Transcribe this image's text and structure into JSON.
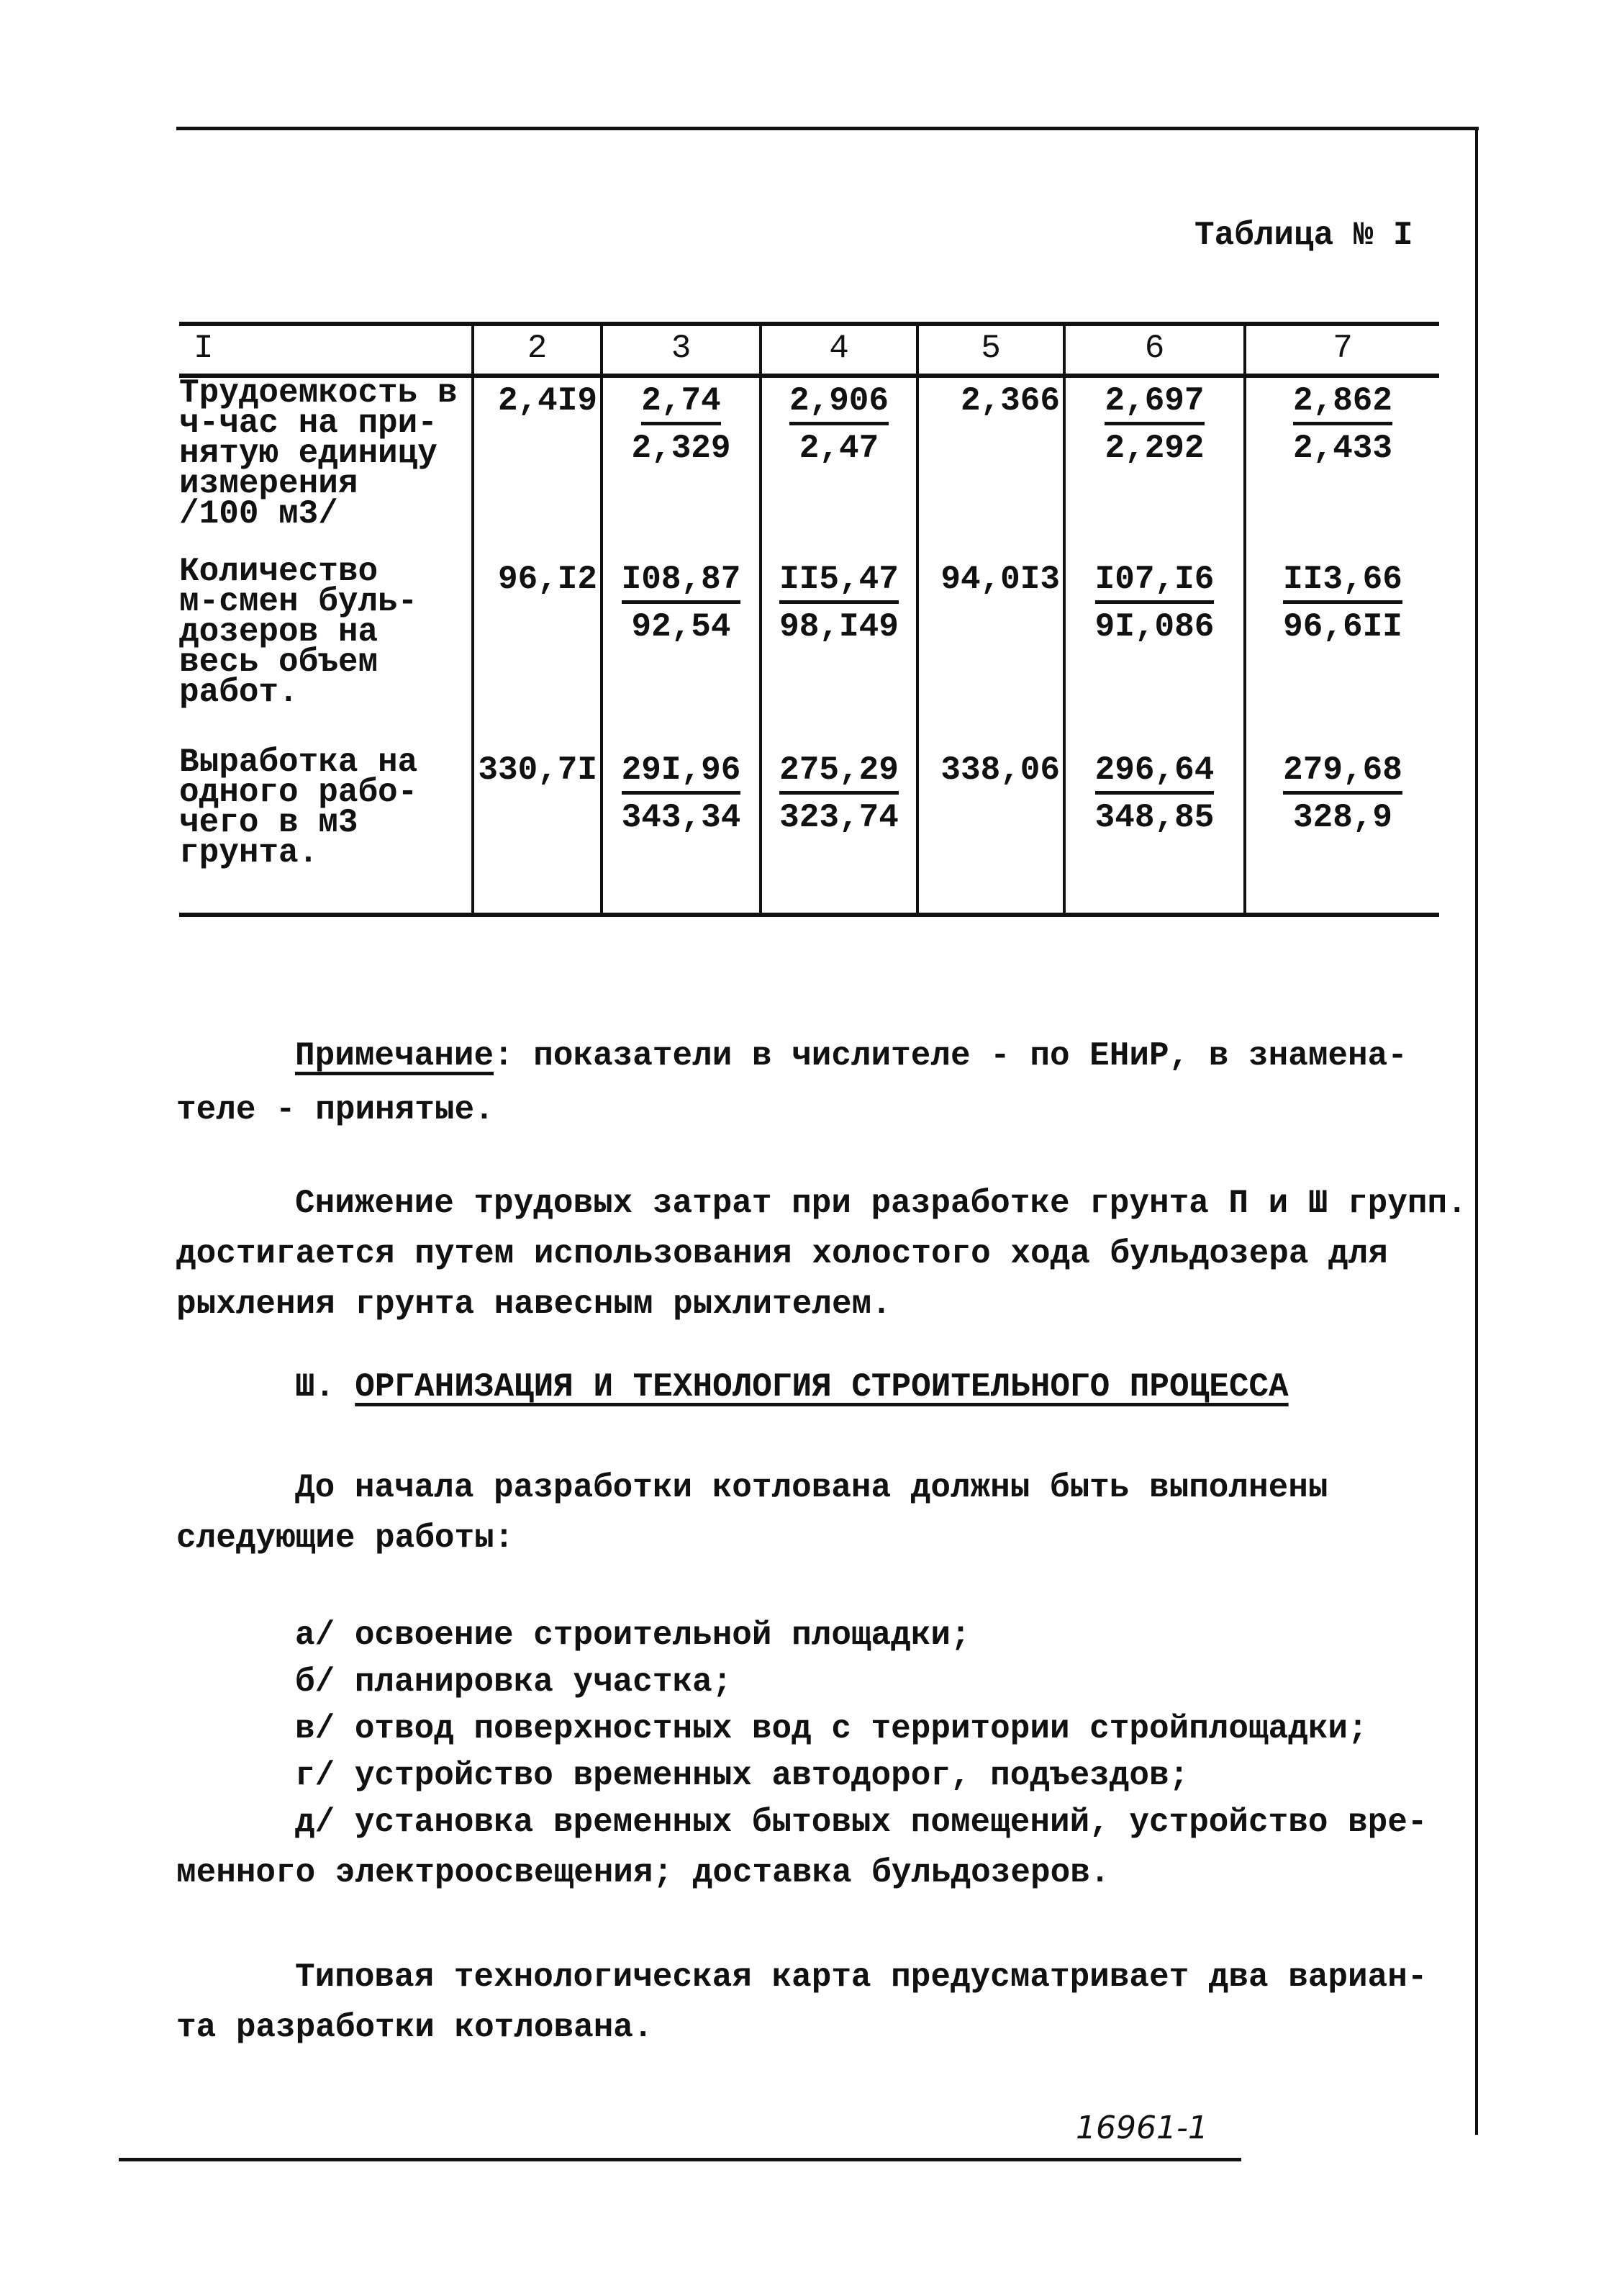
{
  "table_caption": "Таблица № I",
  "table": {
    "headers": [
      "I",
      "2",
      "3",
      "4",
      "5",
      "6",
      "7"
    ],
    "rows": [
      {
        "label": "Трудоемкость в\nч-час на при-\nнятую единицу\nизмерения\n/100 м3/",
        "cells": [
          {
            "value": "2,4I9"
          },
          {
            "numerator": "2,74",
            "denominator": "2,329"
          },
          {
            "numerator": "2,906",
            "denominator": "2,47"
          },
          {
            "value": "2,366"
          },
          {
            "numerator": "2,697",
            "denominator": "2,292"
          },
          {
            "numerator": "2,862",
            "denominator": "2,433"
          }
        ]
      },
      {
        "label": "Количество\nм-смен буль-\nдозеров на\nвесь объем\nработ.",
        "cells": [
          {
            "value": "96,I2"
          },
          {
            "numerator": "I08,87",
            "denominator": "92,54"
          },
          {
            "numerator": "II5,47",
            "denominator": "98,I49"
          },
          {
            "value": "94,0I3"
          },
          {
            "numerator": "I07,I6",
            "denominator": "9I,086"
          },
          {
            "numerator": "II3,66",
            "denominator": "96,6II"
          }
        ]
      },
      {
        "label": "Выработка на\nодного рабо-\nчего в м3\nгрунта.",
        "cells": [
          {
            "value": "330,7I"
          },
          {
            "numerator": "29I,96",
            "denominator": "343,34"
          },
          {
            "numerator": "275,29",
            "denominator": "323,74"
          },
          {
            "value": "338,06"
          },
          {
            "numerator": "296,64",
            "denominator": "348,85"
          },
          {
            "numerator": "279,68",
            "denominator": "328,9"
          }
        ]
      }
    ]
  },
  "note": {
    "label": "Примечание",
    "line1": ": показатели в числителе - по ЕНиР, в знамена-",
    "line2": "теле - принятые."
  },
  "paragraph1": {
    "line1": "Снижение трудовых затрат при разработке грунта П и Ш групп.",
    "line2": "достигается путем использования холостого хода бульдозера для",
    "line3": "рыхления грунта навесным рыхлителем."
  },
  "section": {
    "number": "Ш.",
    "title": "ОРГАНИЗАЦИЯ И ТЕХНОЛОГИЯ СТРОИТЕЛЬНОГО ПРОЦЕССА"
  },
  "paragraph2": {
    "line1": "До начала разработки котлована должны быть выполнены",
    "line2": "следующие работы:"
  },
  "list": [
    "а/ освоение строительной площадки;",
    "б/ планировка участка;",
    "в/ отвод поверхностных вод с территории стройплощадки;",
    "г/ устройство временных автодорог, подъездов;",
    "д/ установка временных бытовых помещений, устройство вре-"
  ],
  "list_continuation": "менного электроосвещения; доставка бульдозеров.",
  "paragraph3": {
    "line1": "Типовая технологическая карта предусматривает два вариан-",
    "line2": "та разработки котлована."
  },
  "footer": {
    "doc_number": "16961-1"
  }
}
